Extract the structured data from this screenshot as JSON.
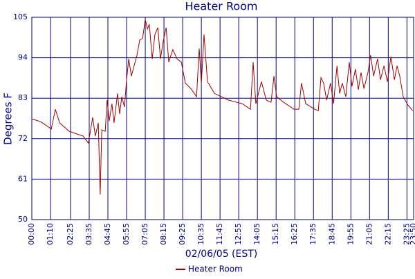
{
  "chart_data": {
    "type": "line",
    "title": "Heater Room",
    "x_label": "02/06/05 (EST)",
    "y_label": "Degrees F",
    "x": [
      0,
      36,
      73,
      88,
      104,
      140,
      192,
      212,
      228,
      238,
      249,
      256,
      262,
      275,
      282,
      290,
      300,
      308,
      321,
      329,
      337,
      347,
      355,
      363,
      373,
      383,
      394,
      404,
      415,
      425,
      433,
      440,
      451,
      461,
      472,
      482,
      492,
      503,
      513,
      528,
      544,
      560,
      575,
      596,
      617,
      627,
      635,
      645,
      658,
      684,
      736,
      788,
      819,
      829,
      839,
      860,
      878,
      896,
      907,
      917,
      943,
      982,
      1000,
      1010,
      1026,
      1060,
      1073,
      1083,
      1093,
      1104,
      1119,
      1130,
      1143,
      1153,
      1163,
      1176,
      1189,
      1199,
      1212,
      1223,
      1233,
      1244,
      1259,
      1269,
      1280,
      1295,
      1306,
      1319,
      1332,
      1345,
      1358,
      1368,
      1378,
      1391,
      1409,
      1427
    ],
    "series": [
      {
        "name": "Heater Room",
        "color": "#a00000",
        "values": [
          77.4,
          76.5,
          74.6,
          80,
          76.3,
          74,
          72.7,
          70.8,
          77.8,
          72.7,
          76.3,
          56.8,
          74.4,
          74,
          82.5,
          76.8,
          81.5,
          76.3,
          84.3,
          78.7,
          83.4,
          80.6,
          88,
          93.7,
          89,
          91.8,
          94.7,
          98.8,
          99.3,
          104.4,
          101.8,
          103.1,
          93.7,
          100.3,
          102.2,
          93.7,
          98.4,
          102.2,
          92.8,
          96.2,
          93.7,
          92.8,
          87.1,
          85.6,
          83.4,
          96.5,
          87.1,
          100.3,
          87.5,
          84.3,
          82.5,
          81.5,
          80,
          92.8,
          81.5,
          87.5,
          82.5,
          81.9,
          89,
          83.4,
          81.9,
          80,
          80,
          87.1,
          81.5,
          80,
          79.6,
          88.6,
          87.1,
          82.5,
          87.1,
          81.5,
          91.8,
          84.3,
          87.1,
          83.4,
          92.8,
          86.2,
          90.9,
          85.3,
          90,
          85.6,
          90,
          94.7,
          89,
          93.7,
          88,
          91.8,
          87.5,
          94.3,
          88,
          91.8,
          89,
          83.4,
          81.1,
          79.6
        ]
      }
    ],
    "xlim": [
      0,
      1430
    ],
    "xticks": [
      {
        "value": 0,
        "label": "00:00"
      },
      {
        "value": 70,
        "label": "01:10"
      },
      {
        "value": 145,
        "label": "02:25"
      },
      {
        "value": 215,
        "label": "03:35"
      },
      {
        "value": 285,
        "label": "04:45"
      },
      {
        "value": 355,
        "label": "05:55"
      },
      {
        "value": 425,
        "label": "07:05"
      },
      {
        "value": 495,
        "label": "08:15"
      },
      {
        "value": 565,
        "label": "09:25"
      },
      {
        "value": 635,
        "label": "10:35"
      },
      {
        "value": 705,
        "label": "11:45"
      },
      {
        "value": 775,
        "label": "12:55"
      },
      {
        "value": 845,
        "label": "14:05"
      },
      {
        "value": 915,
        "label": "15:15"
      },
      {
        "value": 985,
        "label": "16:25"
      },
      {
        "value": 1055,
        "label": "17:35"
      },
      {
        "value": 1125,
        "label": "18:45"
      },
      {
        "value": 1195,
        "label": "19:55"
      },
      {
        "value": 1265,
        "label": "21:05"
      },
      {
        "value": 1335,
        "label": "22:15"
      },
      {
        "value": 1405,
        "label": "23:25"
      },
      {
        "value": 1430,
        "label": "23:50"
      }
    ],
    "ylim": [
      50,
      105
    ],
    "yticks": [
      50,
      61,
      72,
      83,
      94,
      105
    ],
    "grid": true
  }
}
